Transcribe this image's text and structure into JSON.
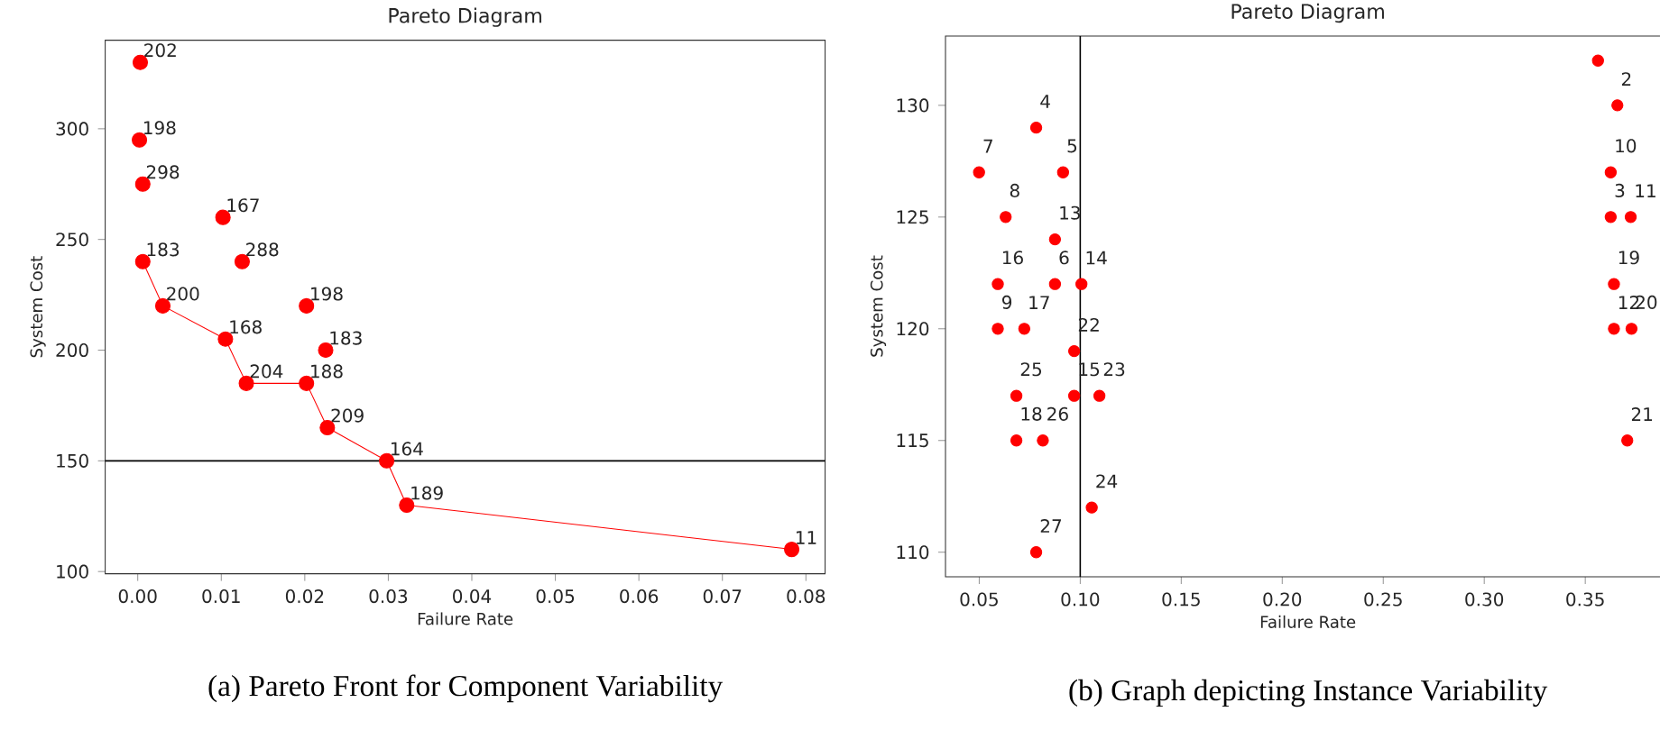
{
  "chart_data": [
    {
      "type": "scatter",
      "title": "Pareto Diagram",
      "xlabel": "Failure Rate",
      "ylabel": "System Cost",
      "xlim": [
        -0.0039,
        0.0823
      ],
      "ylim": [
        99,
        340
      ],
      "xticks": [
        {
          "value": 0,
          "label": "0.00"
        },
        {
          "value": 0.01,
          "label": "0.01"
        },
        {
          "value": 0.02,
          "label": "0.02"
        },
        {
          "value": 0.03,
          "label": "0.03"
        },
        {
          "value": 0.04,
          "label": "0.04"
        },
        {
          "value": 0.05,
          "label": "0.05"
        },
        {
          "value": 0.06,
          "label": "0.06"
        },
        {
          "value": 0.07,
          "label": "0.07"
        },
        {
          "value": 0.08,
          "label": "0.08"
        }
      ],
      "yticks": [
        100,
        150,
        200,
        250,
        300
      ],
      "series": [
        {
          "marker": "circle",
          "color": "#ff0000",
          "x": [
            0.0003,
            0.0002,
            0.0006,
            0.0102,
            0.0006,
            0.0125,
            0.003,
            0.0202,
            0.0105,
            0.0225,
            0.013,
            0.0202,
            0.0227,
            0.0298,
            0.0322,
            0.0783
          ],
          "values": [
            330,
            295,
            275,
            260,
            240,
            240,
            220,
            220,
            205,
            200,
            185,
            185,
            165,
            150,
            130,
            110
          ]
        },
        {
          "type": "line",
          "marker": "none",
          "color": "#ff0000",
          "x": [
            0.0006,
            0.003,
            0.0105,
            0.013,
            0.0202,
            0.0227,
            0.0298,
            0.0322,
            0.0783
          ],
          "values": [
            240,
            220,
            205,
            185,
            185,
            165,
            150,
            130,
            110
          ]
        }
      ],
      "ref_lines": [
        {
          "axis": "y",
          "value": 150,
          "color": "#000000"
        }
      ],
      "annotations": [
        {
          "text": "202",
          "x": 0.0003,
          "y": 330
        },
        {
          "text": "198",
          "x": 0.0002,
          "y": 295
        },
        {
          "text": "298",
          "x": 0.0006,
          "y": 275
        },
        {
          "text": "167",
          "x": 0.0102,
          "y": 260
        },
        {
          "text": "183",
          "x": 0.0006,
          "y": 240
        },
        {
          "text": "288",
          "x": 0.0125,
          "y": 240
        },
        {
          "text": "200",
          "x": 0.003,
          "y": 220
        },
        {
          "text": "198",
          "x": 0.0202,
          "y": 220
        },
        {
          "text": "168",
          "x": 0.0105,
          "y": 205
        },
        {
          "text": "183",
          "x": 0.0225,
          "y": 200
        },
        {
          "text": "204",
          "x": 0.013,
          "y": 185
        },
        {
          "text": "188",
          "x": 0.0202,
          "y": 185
        },
        {
          "text": "209",
          "x": 0.0227,
          "y": 165
        },
        {
          "text": "164",
          "x": 0.0298,
          "y": 150
        },
        {
          "text": "189",
          "x": 0.0322,
          "y": 130
        },
        {
          "text": "11",
          "x": 0.0783,
          "y": 110
        },
        "(a) Pareto Front for Component Variability"
      ]
    },
    {
      "type": "scatter",
      "title": "Pareto Diagram",
      "xlabel": "Failure Rate",
      "ylabel": "System Cost",
      "xlim": [
        0.0333,
        0.392
      ],
      "ylim": [
        108.9,
        133.1
      ],
      "xticks": [
        0.05,
        {
          "value": 0.1,
          "label": "0.10"
        },
        0.15,
        {
          "value": 0.2,
          "label": "0.20"
        },
        0.25,
        {
          "value": 0.3,
          "label": "0.30"
        },
        0.35
      ],
      "yticks": [
        110,
        115,
        120,
        125,
        130
      ],
      "series": [
        {
          "marker": "circle",
          "color": "#ff0000",
          "x": [
            0.0782,
            0.0499,
            0.0915,
            0.0631,
            0.0875,
            0.0875,
            0.1006,
            0.0592,
            0.0592,
            0.0723,
            0.097,
            0.0684,
            0.097,
            0.1095,
            0.0684,
            0.0815,
            0.1057,
            0.0782,
            0.3563,
            0.3659,
            0.3626,
            0.3626,
            0.3725,
            0.3642,
            0.3642,
            0.3729,
            0.3708
          ],
          "values": [
            129,
            127,
            127,
            125,
            124,
            122,
            122,
            122,
            120,
            120,
            119,
            117,
            117,
            117,
            115,
            115,
            112,
            110,
            132,
            130,
            127,
            125,
            125,
            122,
            120,
            120,
            115
          ]
        }
      ],
      "ref_lines": [
        {
          "axis": "x",
          "value": 0.1,
          "color": "#000000"
        }
      ],
      "annotations": [
        {
          "text": "4",
          "x": 0.0782,
          "y": 129
        },
        {
          "text": "7",
          "x": 0.0499,
          "y": 127
        },
        {
          "text": "5",
          "x": 0.0915,
          "y": 127
        },
        {
          "text": "8",
          "x": 0.0631,
          "y": 125
        },
        {
          "text": "13",
          "x": 0.0875,
          "y": 124
        },
        {
          "text": "6",
          "x": 0.0875,
          "y": 122
        },
        {
          "text": "14",
          "x": 0.1006,
          "y": 122
        },
        {
          "text": "16",
          "x": 0.0592,
          "y": 122
        },
        {
          "text": "9",
          "x": 0.0592,
          "y": 120
        },
        {
          "text": "17",
          "x": 0.0723,
          "y": 120
        },
        {
          "text": "22",
          "x": 0.097,
          "y": 119
        },
        {
          "text": "25",
          "x": 0.0684,
          "y": 117
        },
        {
          "text": "15",
          "x": 0.097,
          "y": 117
        },
        {
          "text": "23",
          "x": 0.1095,
          "y": 117
        },
        {
          "text": "18",
          "x": 0.0684,
          "y": 115
        },
        {
          "text": "26",
          "x": 0.0815,
          "y": 115
        },
        {
          "text": "24",
          "x": 0.1057,
          "y": 112
        },
        {
          "text": "27",
          "x": 0.0782,
          "y": 110
        },
        {
          "text": "2",
          "x": 0.3659,
          "y": 130
        },
        {
          "text": "10",
          "x": 0.3626,
          "y": 127
        },
        {
          "text": "3",
          "x": 0.3626,
          "y": 125
        },
        {
          "text": "11",
          "x": 0.3725,
          "y": 125
        },
        {
          "text": "19",
          "x": 0.3642,
          "y": 122
        },
        {
          "text": "12",
          "x": 0.3642,
          "y": 120
        },
        {
          "text": "20",
          "x": 0.3729,
          "y": 120
        },
        {
          "text": "21",
          "x": 0.3708,
          "y": 115
        },
        "(b) Graph depicting Instance Variability"
      ]
    }
  ]
}
